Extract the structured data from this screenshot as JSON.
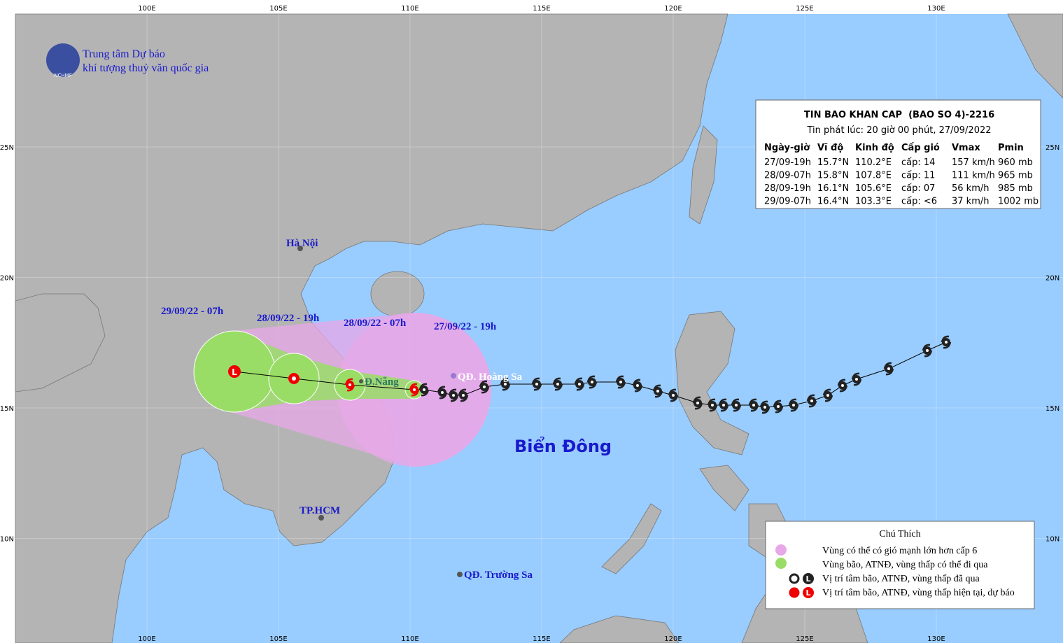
{
  "logo": {
    "line1": "Trung tâm Dự báo",
    "line2": "khí tượng thuỷ văn quốc gia",
    "badge": "NCHMF"
  },
  "lon_labels": [
    "100E",
    "105E",
    "110E",
    "115E",
    "120E",
    "125E",
    "130E"
  ],
  "lat_labels": [
    "25N",
    "20N",
    "15N",
    "10N"
  ],
  "info_box": {
    "title": "TIN BAO KHAN CAP  (BAO SO 4)-2216",
    "issued": "Tin phát lúc: 20 giờ 00 phút, 27/09/2022",
    "headers": [
      "Ngày-giờ",
      "Vĩ độ",
      "Kinh độ",
      "Cấp gió",
      "Vmax",
      "Pmin"
    ],
    "rows": [
      [
        "27/09-19h",
        "15.7°N",
        "110.2°E",
        "cấp: 14",
        "157 km/h",
        "960 mb"
      ],
      [
        "28/09-07h",
        "15.8°N",
        "107.8°E",
        "cấp: 11",
        "111 km/h",
        "965 mb"
      ],
      [
        "28/09-19h",
        "16.1°N",
        "105.6°E",
        "cấp: 07",
        "56 km/h",
        "985 mb"
      ],
      [
        "29/09-07h",
        "16.4°N",
        "103.3°E",
        "cấp: <6",
        "37 km/h",
        "1002 mb"
      ]
    ]
  },
  "places": {
    "hanoi": "Hà Nội",
    "hcm": "TP.HCM",
    "danang": "Đ.Nẵng",
    "hoangsa": "QĐ. Hoàng Sa",
    "truongsa": "QĐ. Trường Sa",
    "sea": "Biển Đông"
  },
  "forecast_labels": [
    "29/09/22 - 07h",
    "28/09/22 - 19h",
    "28/09/22 - 07h",
    "27/09/22 - 19h"
  ],
  "low_symbol": "L",
  "legend": {
    "title": "Chú Thích",
    "items": [
      "Vùng có thể có gió mạnh lớn hơn cấp 6",
      "Vùng bão, ATNĐ, vùng thấp có thể đi qua",
      "Vị trí tâm bão, ATNĐ, vùng thấp đã qua",
      "Vị trí tâm bão, ATNĐ, vùng thấp hiện tại, dự báo"
    ]
  }
}
